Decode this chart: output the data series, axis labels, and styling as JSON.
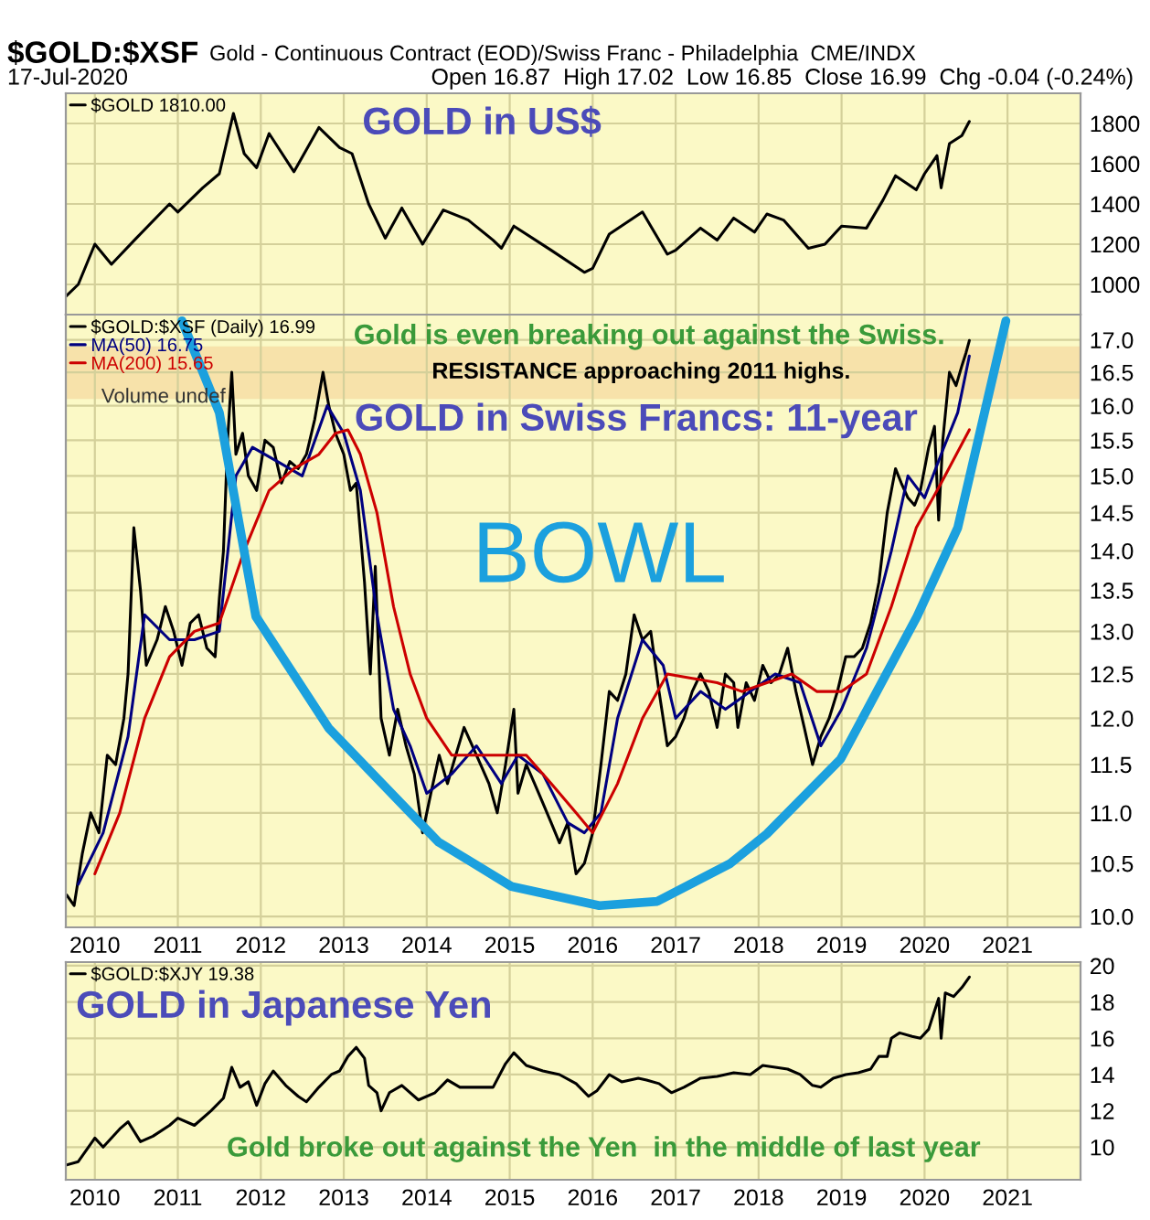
{
  "chart_data": [
    {
      "type": "line",
      "title": "$GOLD:$XSF",
      "subtitle": "Gold - Continuous Contract (EOD)/Swiss Franc - Philadelphia  CME/INDX",
      "annotations": [
        "17-Jul-2020",
        "Open 16.87  High 17.02  Low 16.85  Close 16.99  Chg -0.04 (-0.24%)",
        "GOLD in US$"
      ],
      "series": [
        {
          "name": "$GOLD 1810.00",
          "color": "#000000",
          "x": [
            2009.65,
            2009.8,
            2009.9,
            2010.0,
            2010.2,
            2010.5,
            2010.9,
            2011.0,
            2011.3,
            2011.5,
            2011.67,
            2011.8,
            2011.95,
            2012.1,
            2012.4,
            2012.7,
            2012.95,
            2013.1,
            2013.3,
            2013.5,
            2013.7,
            2013.95,
            2014.2,
            2014.5,
            2014.8,
            2014.9,
            2015.05,
            2015.5,
            2015.9,
            2016.0,
            2016.2,
            2016.6,
            2016.9,
            2017.0,
            2017.3,
            2017.5,
            2017.7,
            2017.95,
            2018.1,
            2018.3,
            2018.6,
            2018.8,
            2019.0,
            2019.3,
            2019.5,
            2019.65,
            2019.9,
            2020.0,
            2020.15,
            2020.2,
            2020.3,
            2020.45,
            2020.54
          ],
          "values": [
            940,
            1000,
            1100,
            1200,
            1100,
            1230,
            1400,
            1360,
            1480,
            1550,
            1850,
            1650,
            1580,
            1750,
            1560,
            1780,
            1680,
            1650,
            1400,
            1230,
            1380,
            1200,
            1370,
            1320,
            1220,
            1180,
            1290,
            1170,
            1060,
            1080,
            1250,
            1360,
            1150,
            1170,
            1280,
            1220,
            1330,
            1260,
            1350,
            1320,
            1180,
            1200,
            1290,
            1280,
            1420,
            1540,
            1470,
            1550,
            1640,
            1480,
            1700,
            1740,
            1810
          ]
        }
      ],
      "xlim": [
        2009.65,
        2021.88
      ],
      "xticks": [
        2010,
        2011,
        2012,
        2013,
        2014,
        2015,
        2016,
        2017,
        2018,
        2019,
        2020,
        2021
      ],
      "ylim": [
        850,
        1950
      ],
      "yticks": [
        1000,
        1200,
        1400,
        1600,
        1800
      ],
      "tick_labels": "y",
      "grid": true,
      "legend": "top left"
    },
    {
      "type": "line",
      "log": "y",
      "annotations": [
        "Gold is even breaking out against the Swiss.",
        "GOLD in Swiss Francs: 11-year",
        "BOWL",
        "Volume undef"
      ],
      "bands": [
        {
          "axis": "y",
          "from": 16.1,
          "to": 16.9,
          "label": "RESISTANCE approaching 2011 highs.",
          "color": "#f5d9a0"
        }
      ],
      "series": [
        {
          "name": "$GOLD:$XSF (Daily) 16.99",
          "color": "#000000",
          "x": [
            2009.66,
            2009.75,
            2009.85,
            2009.95,
            2010.05,
            2010.15,
            2010.25,
            2010.35,
            2010.4,
            2010.47,
            2010.55,
            2010.62,
            2010.75,
            2010.85,
            2010.95,
            2011.05,
            2011.15,
            2011.25,
            2011.35,
            2011.45,
            2011.5,
            2011.55,
            2011.6,
            2011.65,
            2011.7,
            2011.78,
            2011.85,
            2011.95,
            2012.05,
            2012.15,
            2012.25,
            2012.35,
            2012.45,
            2012.55,
            2012.65,
            2012.75,
            2012.82,
            2012.9,
            2013.0,
            2013.08,
            2013.15,
            2013.25,
            2013.32,
            2013.38,
            2013.45,
            2013.55,
            2013.65,
            2013.75,
            2013.85,
            2013.95,
            2014.05,
            2014.15,
            2014.25,
            2014.35,
            2014.45,
            2014.55,
            2014.65,
            2014.75,
            2014.85,
            2014.95,
            2015.05,
            2015.1,
            2015.2,
            2015.3,
            2015.4,
            2015.5,
            2015.6,
            2015.7,
            2015.8,
            2015.9,
            2016.0,
            2016.1,
            2016.2,
            2016.3,
            2016.4,
            2016.5,
            2016.6,
            2016.7,
            2016.8,
            2016.9,
            2017.0,
            2017.1,
            2017.2,
            2017.3,
            2017.4,
            2017.5,
            2017.6,
            2017.7,
            2017.75,
            2017.85,
            2017.95,
            2018.05,
            2018.15,
            2018.25,
            2018.35,
            2018.45,
            2018.55,
            2018.65,
            2018.75,
            2018.85,
            2018.95,
            2019.05,
            2019.15,
            2019.25,
            2019.35,
            2019.45,
            2019.55,
            2019.65,
            2019.72,
            2019.8,
            2019.88,
            2019.95,
            2020.05,
            2020.12,
            2020.17,
            2020.22,
            2020.3,
            2020.38,
            2020.45,
            2020.5,
            2020.54
          ],
          "values": [
            10.2,
            10.1,
            10.6,
            11.0,
            10.8,
            11.6,
            11.5,
            12.0,
            12.5,
            14.3,
            13.5,
            12.6,
            12.9,
            13.3,
            13.0,
            12.6,
            13.1,
            13.2,
            12.8,
            12.7,
            13.4,
            14.0,
            15.5,
            16.5,
            15.3,
            15.6,
            15.0,
            14.8,
            15.5,
            15.4,
            14.9,
            15.2,
            15.1,
            15.3,
            15.8,
            16.5,
            16.0,
            15.6,
            15.3,
            14.8,
            14.9,
            13.6,
            12.5,
            13.8,
            12.0,
            11.6,
            12.1,
            11.7,
            11.4,
            10.8,
            11.2,
            11.6,
            11.3,
            11.6,
            11.9,
            11.7,
            11.5,
            11.3,
            11.0,
            11.5,
            12.1,
            11.2,
            11.5,
            11.3,
            11.1,
            10.9,
            10.7,
            10.9,
            10.4,
            10.5,
            10.8,
            11.5,
            12.3,
            12.2,
            12.5,
            13.2,
            12.9,
            13.0,
            12.3,
            11.7,
            11.8,
            12.0,
            12.3,
            12.5,
            12.3,
            11.9,
            12.5,
            12.4,
            11.9,
            12.4,
            12.2,
            12.6,
            12.4,
            12.5,
            12.8,
            12.3,
            11.9,
            11.5,
            11.8,
            12.0,
            12.3,
            12.7,
            12.7,
            12.8,
            13.1,
            13.6,
            14.5,
            15.1,
            14.9,
            14.7,
            14.6,
            14.8,
            15.4,
            15.7,
            14.4,
            15.5,
            16.5,
            16.3,
            16.6,
            16.8,
            16.99
          ]
        },
        {
          "name": "MA(50) 16.75",
          "color": "#000080",
          "x": [
            2009.8,
            2010.1,
            2010.4,
            2010.6,
            2010.9,
            2011.2,
            2011.5,
            2011.7,
            2011.9,
            2012.2,
            2012.5,
            2012.8,
            2013.0,
            2013.2,
            2013.4,
            2013.6,
            2013.8,
            2014.0,
            2014.3,
            2014.6,
            2014.9,
            2015.1,
            2015.4,
            2015.7,
            2015.9,
            2016.1,
            2016.3,
            2016.6,
            2016.85,
            2017.0,
            2017.3,
            2017.6,
            2017.9,
            2018.2,
            2018.5,
            2018.75,
            2019.0,
            2019.3,
            2019.6,
            2019.8,
            2020.0,
            2020.2,
            2020.4,
            2020.54
          ],
          "values": [
            10.3,
            10.8,
            11.8,
            13.2,
            12.9,
            12.9,
            13.0,
            15.0,
            15.4,
            15.2,
            15.0,
            16.0,
            15.6,
            14.8,
            13.2,
            12.1,
            11.7,
            11.2,
            11.4,
            11.7,
            11.3,
            11.6,
            11.4,
            10.9,
            10.8,
            11.0,
            12.0,
            12.9,
            12.6,
            12.0,
            12.3,
            12.1,
            12.3,
            12.5,
            12.4,
            11.7,
            12.1,
            12.8,
            14.0,
            15.0,
            14.7,
            15.3,
            15.9,
            16.75
          ]
        },
        {
          "name": "MA(200) 15.65",
          "color": "#cc0000",
          "x": [
            2010.0,
            2010.3,
            2010.6,
            2010.9,
            2011.2,
            2011.5,
            2011.8,
            2012.1,
            2012.4,
            2012.7,
            2012.9,
            2013.05,
            2013.2,
            2013.4,
            2013.6,
            2013.8,
            2014.0,
            2014.3,
            2014.6,
            2014.9,
            2015.2,
            2015.5,
            2015.8,
            2016.0,
            2016.3,
            2016.6,
            2016.9,
            2017.2,
            2017.5,
            2017.8,
            2018.1,
            2018.4,
            2018.7,
            2019.0,
            2019.3,
            2019.6,
            2019.9,
            2020.2,
            2020.54
          ],
          "values": [
            10.4,
            11.0,
            12.0,
            12.7,
            13.0,
            13.1,
            14.0,
            14.8,
            15.1,
            15.3,
            15.6,
            15.65,
            15.3,
            14.5,
            13.3,
            12.5,
            12.0,
            11.6,
            11.6,
            11.6,
            11.6,
            11.3,
            11.0,
            10.8,
            11.3,
            12.0,
            12.5,
            12.45,
            12.4,
            12.3,
            12.4,
            12.5,
            12.3,
            12.3,
            12.5,
            13.3,
            14.3,
            14.9,
            15.65
          ]
        },
        {
          "color": "#1ba0de",
          "x": [
            2011.05,
            2011.5,
            2011.94,
            2012.82,
            2014.14,
            2015.02,
            2016.08,
            2016.78,
            2017.66,
            2018.1,
            2018.99,
            2019.91,
            2020.4,
            2020.98
          ],
          "values": [
            17.3,
            15.9,
            13.18,
            11.89,
            10.71,
            10.28,
            10.1,
            10.14,
            10.5,
            10.79,
            11.56,
            13.18,
            14.3,
            17.3
          ]
        }
      ],
      "xlim": [
        2009.65,
        2021.88
      ],
      "xticks": [
        2010,
        2011,
        2012,
        2013,
        2014,
        2015,
        2016,
        2017,
        2018,
        2019,
        2020,
        2021
      ],
      "ylim": [
        9.9,
        17.4
      ],
      "yticks": [
        {
          "value": 10,
          "label": "10.0"
        },
        {
          "value": 10.5,
          "label": "10.5"
        },
        {
          "value": 11,
          "label": "11.0"
        },
        {
          "value": 11.5,
          "label": "11.5"
        },
        {
          "value": 12,
          "label": "12.0"
        },
        {
          "value": 12.5,
          "label": "12.5"
        },
        {
          "value": 13,
          "label": "13.0"
        },
        {
          "value": 13.5,
          "label": "13.5"
        },
        {
          "value": 14,
          "label": "14.0"
        },
        {
          "value": 14.5,
          "label": "14.5"
        },
        {
          "value": 15,
          "label": "15.0"
        },
        {
          "value": 15.5,
          "label": "15.5"
        },
        {
          "value": 16,
          "label": "16.0"
        },
        {
          "value": 16.5,
          "label": "16.5"
        },
        {
          "value": 17,
          "label": "17.0"
        }
      ],
      "grid": true,
      "legend": "top left"
    },
    {
      "type": "line",
      "annotations": [
        "GOLD in Japanese Yen",
        "Gold broke out against the Yen  in the middle of last year"
      ],
      "series": [
        {
          "name": "$GOLD:$XJY 19.38",
          "color": "#000000",
          "x": [
            2009.65,
            2009.8,
            2010.0,
            2010.1,
            2010.3,
            2010.4,
            2010.55,
            2010.7,
            2010.9,
            2011.0,
            2011.2,
            2011.4,
            2011.55,
            2011.65,
            2011.75,
            2011.85,
            2011.95,
            2012.05,
            2012.15,
            2012.3,
            2012.45,
            2012.55,
            2012.7,
            2012.85,
            2012.95,
            2013.05,
            2013.15,
            2013.25,
            2013.3,
            2013.4,
            2013.45,
            2013.55,
            2013.7,
            2013.9,
            2014.1,
            2014.25,
            2014.4,
            2014.6,
            2014.8,
            2014.95,
            2015.05,
            2015.2,
            2015.4,
            2015.6,
            2015.8,
            2015.95,
            2016.05,
            2016.2,
            2016.35,
            2016.55,
            2016.65,
            2016.8,
            2016.95,
            2017.1,
            2017.3,
            2017.5,
            2017.7,
            2017.9,
            2018.05,
            2018.2,
            2018.35,
            2018.5,
            2018.65,
            2018.75,
            2018.9,
            2019.05,
            2019.2,
            2019.35,
            2019.45,
            2019.55,
            2019.6,
            2019.7,
            2019.85,
            2019.95,
            2020.05,
            2020.12,
            2020.17,
            2020.2,
            2020.25,
            2020.35,
            2020.45,
            2020.54
          ],
          "values": [
            9.0,
            9.2,
            10.5,
            10.0,
            11.0,
            11.4,
            10.3,
            10.6,
            11.2,
            11.6,
            11.2,
            12.0,
            12.7,
            14.4,
            13.3,
            13.6,
            12.3,
            13.5,
            14.2,
            13.4,
            12.8,
            12.5,
            13.3,
            14.0,
            14.2,
            15.0,
            15.5,
            14.9,
            13.4,
            13.0,
            12.0,
            13.0,
            13.4,
            12.6,
            13.0,
            13.7,
            13.3,
            13.3,
            13.3,
            14.6,
            15.2,
            14.5,
            14.2,
            14.0,
            13.5,
            12.8,
            13.1,
            14.0,
            13.6,
            13.8,
            13.7,
            13.5,
            13.0,
            13.3,
            13.8,
            13.9,
            14.1,
            14.0,
            14.5,
            14.4,
            14.3,
            14.0,
            13.4,
            13.3,
            13.8,
            14.0,
            14.1,
            14.3,
            15.0,
            15.0,
            16.0,
            16.3,
            16.1,
            16.0,
            16.5,
            17.5,
            18.2,
            16.0,
            18.5,
            18.3,
            18.8,
            19.38
          ]
        }
      ],
      "xlim": [
        2009.65,
        2021.88
      ],
      "xticks": [
        2010,
        2011,
        2012,
        2013,
        2014,
        2015,
        2016,
        2017,
        2018,
        2019,
        2020,
        2021
      ],
      "ylim": [
        8.2,
        20.2
      ],
      "yticks": [
        10,
        12,
        14,
        16,
        18,
        20
      ],
      "grid": true,
      "legend": "top left"
    }
  ]
}
